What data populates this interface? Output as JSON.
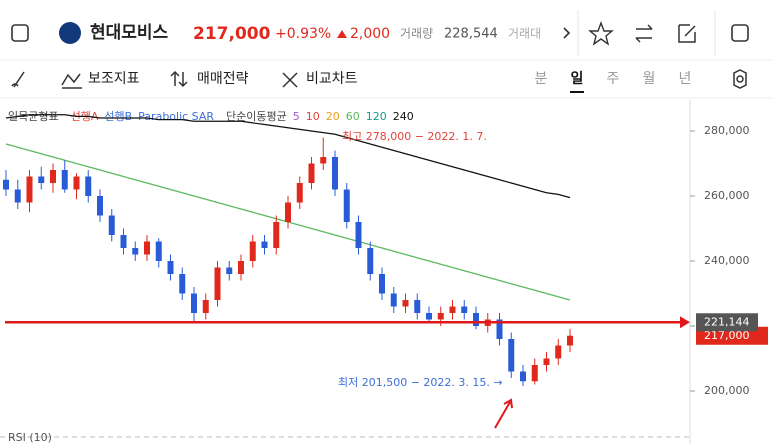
{
  "header": {
    "name": "현대모비스",
    "price": "217,000",
    "change_pct": "+0.93%",
    "change": "2,000",
    "volume_label": "거래량",
    "volume": "228,544",
    "amount_label": "거래대"
  },
  "toolbar": {
    "indicators": "보조지표",
    "strategy": "매매전략",
    "compare": "비교차트",
    "periods": [
      "분",
      "일",
      "주",
      "월",
      "년"
    ]
  },
  "chart_data": {
    "type": "candlestick",
    "legend": [
      {
        "text": "일목균형표",
        "color": "#444444"
      },
      {
        "text": "선행A",
        "color": "#e0443a"
      },
      {
        "text": "선행B",
        "color": "#3d6fd9"
      },
      {
        "text": "Parabolic SAR",
        "color": "#3d6fd9"
      },
      {
        "text": "단순이동평균",
        "color": "#444444"
      },
      {
        "text": "5",
        "color": "#9b59d0"
      },
      {
        "text": "10",
        "color": "#e0443a"
      },
      {
        "text": "20",
        "color": "#f0a020"
      },
      {
        "text": "60",
        "color": "#5cb85c"
      },
      {
        "text": "120",
        "color": "#1a9a8a"
      },
      {
        "text": "240",
        "color": "#111111"
      }
    ],
    "open": [
      265000,
      262000,
      258000,
      266000,
      264000,
      268000,
      262000,
      266000,
      260000,
      254000,
      248000,
      244000,
      242000,
      246000,
      240000,
      236000,
      230000,
      224000,
      228000,
      238000,
      236000,
      240000,
      246000,
      244000,
      252000,
      258000,
      264000,
      270000,
      272000,
      262000,
      252000,
      244000,
      236000,
      230000,
      226000,
      228000,
      224000,
      222000,
      224000,
      226000,
      224000,
      220000,
      222000,
      216000,
      206000,
      203000,
      208000,
      210000,
      214000
    ],
    "high": [
      268000,
      265000,
      268000,
      269000,
      270000,
      271000,
      267000,
      268000,
      262000,
      256000,
      250000,
      246000,
      248000,
      247000,
      242000,
      238000,
      232000,
      230000,
      240000,
      240000,
      242000,
      248000,
      248000,
      254000,
      260000,
      266000,
      272000,
      278000,
      274000,
      264000,
      254000,
      246000,
      238000,
      232000,
      230000,
      230000,
      226000,
      226000,
      228000,
      228000,
      226000,
      224000,
      224000,
      218000,
      208000,
      210000,
      212000,
      216000,
      219000
    ],
    "low": [
      260000,
      256000,
      255000,
      262000,
      261000,
      261000,
      259000,
      258000,
      252000,
      246000,
      242000,
      240000,
      240000,
      238000,
      234000,
      228000,
      221000,
      222000,
      226000,
      234000,
      234000,
      238000,
      242000,
      242000,
      250000,
      256000,
      262000,
      268000,
      260000,
      250000,
      242000,
      234000,
      228000,
      224000,
      224000,
      222000,
      221000,
      220000,
      222000,
      222000,
      219000,
      218000,
      214000,
      204000,
      201500,
      202000,
      206000,
      208000,
      212000
    ],
    "close": [
      262000,
      258000,
      266000,
      264000,
      268000,
      262000,
      266000,
      260000,
      254000,
      248000,
      244000,
      242000,
      246000,
      240000,
      236000,
      230000,
      224000,
      228000,
      238000,
      236000,
      240000,
      246000,
      244000,
      252000,
      258000,
      264000,
      270000,
      272000,
      262000,
      252000,
      244000,
      236000,
      230000,
      226000,
      228000,
      224000,
      222000,
      224000,
      226000,
      224000,
      220000,
      222000,
      216000,
      206000,
      203000,
      208000,
      210000,
      214000,
      217000
    ],
    "up_color": "#e0281c",
    "down_color": "#2a5bd7",
    "series": [
      {
        "name": "240",
        "color": "#111111",
        "values": [
          284000,
          284500,
          285000,
          285000,
          285000,
          285000,
          284500,
          284500,
          284000,
          284000,
          284000,
          284000,
          284000,
          283500,
          283500,
          283500,
          283000,
          283000,
          283000,
          283000,
          283000,
          282500,
          282000,
          281500,
          281000,
          280500,
          280000,
          279500,
          279000,
          278000,
          277000,
          276000,
          275000,
          274000,
          273000,
          272000,
          271000,
          270000,
          269000,
          268000,
          267000,
          266000,
          265000,
          264000,
          263000,
          262000,
          261000,
          260500,
          259500
        ]
      },
      {
        "name": "60",
        "color": "#5cb85c",
        "values": [
          276000,
          275000,
          274000,
          273000,
          272000,
          271000,
          270000,
          269000,
          268000,
          267000,
          266000,
          265000,
          264000,
          263000,
          262000,
          261000,
          260000,
          259000,
          258000,
          257000,
          256000,
          255000,
          254000,
          253000,
          252000,
          251000,
          250000,
          249000,
          248000,
          247000,
          246000,
          245000,
          244000,
          243000,
          242000,
          241000,
          240000,
          239000,
          238000,
          237000,
          236000,
          235000,
          234000,
          233000,
          232000,
          231000,
          230000,
          229000,
          228000
        ]
      }
    ],
    "ylim": [
      188000,
      288000
    ],
    "yticks": [
      {
        "value": 200000,
        "label": "200,000"
      },
      {
        "value": 220000,
        "label": "220,000"
      },
      {
        "value": 240000,
        "label": "240,000"
      },
      {
        "value": 260000,
        "label": "260,000"
      },
      {
        "value": 280000,
        "label": "280,000"
      }
    ],
    "hline": {
      "value": 221144,
      "label": "221,144"
    },
    "last_price": {
      "value": 217000,
      "label": "217,000"
    },
    "annotations": [
      "최고 278,000 − 2022. 1. 7.",
      "최저 201,500 − 2022. 3. 15. →"
    ],
    "rsi_label": "RSI (10)"
  }
}
